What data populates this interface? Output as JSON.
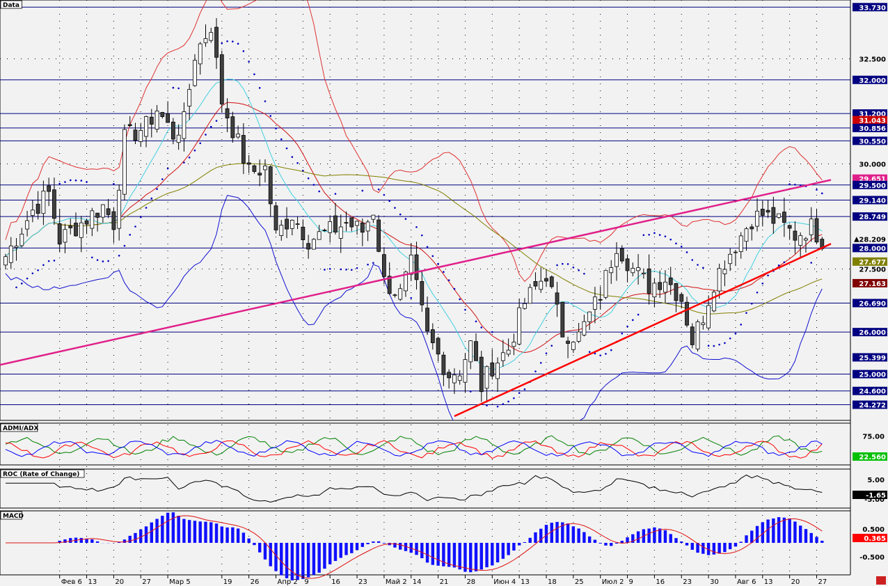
{
  "chart_data": {
    "type": "candlestick",
    "panels": {
      "main": {
        "title": "Data",
        "ylim": [
          23.9,
          33.9
        ]
      },
      "admi": {
        "title": "ADMI/ADX",
        "tick": "75.00",
        "value": "22.560"
      },
      "roc": {
        "title": "ROC (Rate of Change)",
        "ticks": [
          "5.00",
          "-5.00"
        ],
        "value": "-1.65"
      },
      "macd": {
        "title": "MACD",
        "ticks": [
          "0.500",
          "-0.500"
        ],
        "value": "0.365"
      }
    },
    "x_labels": [
      {
        "i": 10,
        "text": "Фев 6"
      },
      {
        "i": 15,
        "text": "13"
      },
      {
        "i": 20,
        "text": "20"
      },
      {
        "i": 25,
        "text": "27"
      },
      {
        "i": 30,
        "text": "Мар 5"
      },
      {
        "i": 40,
        "text": "19"
      },
      {
        "i": 45,
        "text": "26"
      },
      {
        "i": 50,
        "text": "Апр 2"
      },
      {
        "i": 55,
        "text": "9"
      },
      {
        "i": 60,
        "text": "16"
      },
      {
        "i": 65,
        "text": "23"
      },
      {
        "i": 70,
        "text": "Май 2"
      },
      {
        "i": 75,
        "text": "14"
      },
      {
        "i": 80,
        "text": "21"
      },
      {
        "i": 85,
        "text": "28"
      },
      {
        "i": 90,
        "text": "Июн 4"
      },
      {
        "i": 95,
        "text": "13"
      },
      {
        "i": 100,
        "text": "18"
      },
      {
        "i": 105,
        "text": "25"
      },
      {
        "i": 110,
        "text": "Июл 2"
      },
      {
        "i": 115,
        "text": "9"
      },
      {
        "i": 120,
        "text": "16"
      },
      {
        "i": 125,
        "text": "23"
      },
      {
        "i": 130,
        "text": "30"
      },
      {
        "i": 135,
        "text": "Авг 6"
      },
      {
        "i": 140,
        "text": "13"
      },
      {
        "i": 145,
        "text": "20"
      },
      {
        "i": 150,
        "text": "27"
      }
    ],
    "h_levels": [
      33.73,
      32.0,
      31.2,
      30.856,
      30.55,
      29.5,
      29.14,
      28.749,
      28.0,
      26.69,
      26.0,
      25.0,
      24.6,
      24.272
    ],
    "price_labels": [
      {
        "value": 33.73,
        "text": "33.730",
        "style": "level"
      },
      {
        "value": 32.5,
        "text": "32.500",
        "style": "tick"
      },
      {
        "value": 32.0,
        "text": "32.000",
        "style": "level"
      },
      {
        "value": 31.2,
        "text": "31.200",
        "style": "level"
      },
      {
        "value": 31.043,
        "text": "31.043",
        "style": "red"
      },
      {
        "value": 30.856,
        "text": "30.856",
        "style": "level"
      },
      {
        "value": 30.55,
        "text": "30.550",
        "style": "level"
      },
      {
        "value": 30.0,
        "text": "30.000",
        "style": "tick"
      },
      {
        "value": 29.651,
        "text": "29.651",
        "style": "magenta"
      },
      {
        "value": 29.5,
        "text": "29.500",
        "style": "level"
      },
      {
        "value": 29.14,
        "text": "29.140",
        "style": "level"
      },
      {
        "value": 28.749,
        "text": "28.749",
        "style": "level"
      },
      {
        "value": 28.209,
        "text": "28.209",
        "style": "current"
      },
      {
        "value": 28.0,
        "text": "28.000",
        "style": "level"
      },
      {
        "value": 27.677,
        "text": "27.677",
        "style": "olive"
      },
      {
        "value": 27.5,
        "text": "27.500",
        "style": "tick"
      },
      {
        "value": 27.163,
        "text": "27.163",
        "style": "darkred"
      },
      {
        "value": 26.69,
        "text": "26.690",
        "style": "level"
      },
      {
        "value": 26.0,
        "text": "26.000",
        "style": "level"
      },
      {
        "value": 25.399,
        "text": "25.399",
        "style": "level"
      },
      {
        "value": 25.0,
        "text": "25.000",
        "style": "level"
      },
      {
        "value": 24.6,
        "text": "24.600",
        "style": "level"
      },
      {
        "value": 24.272,
        "text": "24.272",
        "style": "level"
      }
    ],
    "colors": {
      "background": "#f2f2f2",
      "level_line": "#000080",
      "label_bg": "#000080",
      "candle_up": "#ffffff",
      "candle_down": "#404040",
      "trend_magenta": "#e0208a",
      "trend_red": "#ff0000",
      "ma_cyan": "#40d0e0",
      "ma_red": "#d01010",
      "ma_olive": "#808000",
      "bb_upper": "#e03030",
      "bb_lower": "#1010d0",
      "sar": "#0000c0",
      "macd_hist": "#1010ff",
      "macd_signal": "#e01010"
    }
  }
}
